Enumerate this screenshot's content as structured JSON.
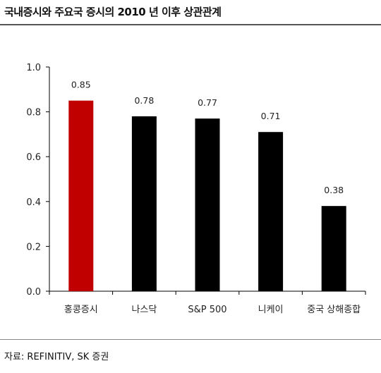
{
  "header": {
    "title": "국내증시와 주요국 증시의 2010 년 이후 상관관계"
  },
  "footer": {
    "source": "자료: REFINITIV, SK 증권"
  },
  "chart_data": {
    "type": "bar",
    "categories": [
      "홍콩증시",
      "나스닥",
      "S&P 500",
      "니케이",
      "중국 상해종합"
    ],
    "values": [
      0.85,
      0.78,
      0.77,
      0.71,
      0.38
    ],
    "value_labels": [
      "0.85",
      "0.78",
      "0.77",
      "0.71",
      "0.38"
    ],
    "yticks": [
      "0.0",
      "0.2",
      "0.4",
      "0.6",
      "0.8",
      "1.0"
    ],
    "ylim": [
      0,
      1.0
    ],
    "title": "",
    "xlabel": "",
    "ylabel": "",
    "grid": false,
    "colors": {
      "highlight": "#c00000",
      "default": "#000000"
    },
    "highlight_index": 0
  }
}
